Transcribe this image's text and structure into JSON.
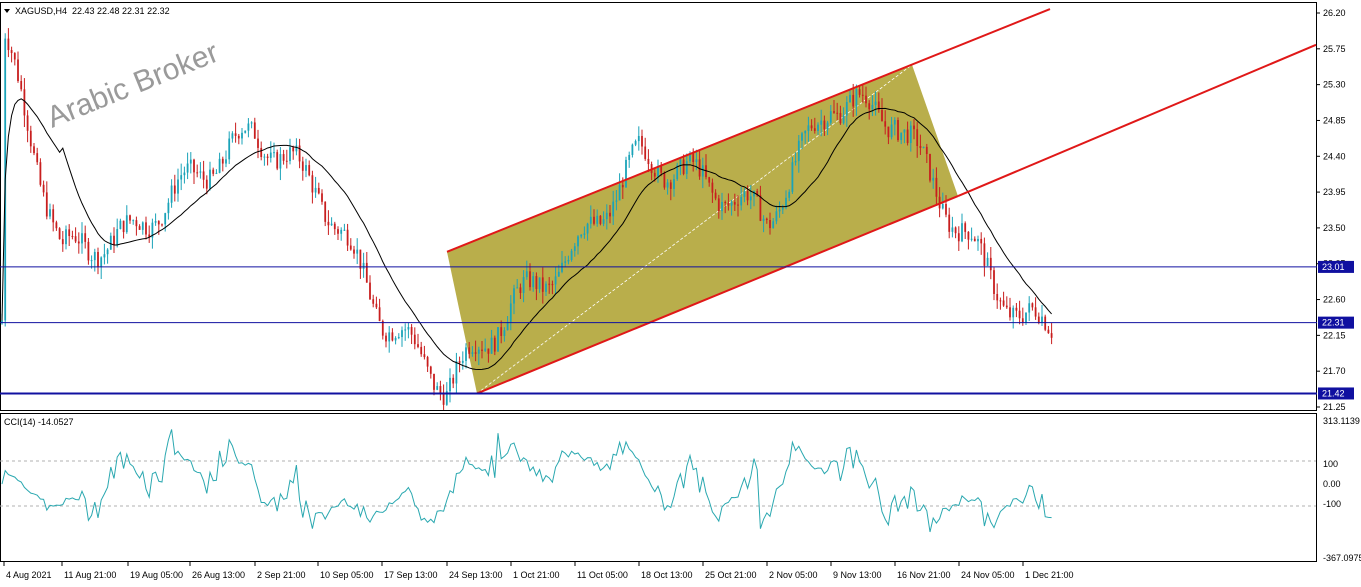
{
  "header": {
    "symbol": "XAGUSD,H4",
    "ohlc": "22.43 22.48 22.31 22.32"
  },
  "watermark": "Arabic Broker",
  "colors": {
    "bull": "#1aa3b8",
    "bear": "#c81e1e",
    "ma": "#000000",
    "channel_line": "#e01818",
    "channel_fill": "#a89a1e",
    "hline": "#1010a0",
    "hline_tag": "#1010a0",
    "cci": "#2aa8b0"
  },
  "price_axis": {
    "ticks": [
      "26.20",
      "25.75",
      "25.30",
      "24.85",
      "24.40",
      "23.95",
      "23.50",
      "23.05",
      "22.60",
      "22.15",
      "21.70",
      "21.25"
    ]
  },
  "hlines": [
    {
      "label": "23.01",
      "price": 23.01
    },
    {
      "label": "22.31",
      "price": 22.31
    },
    {
      "label": "21.42",
      "price": 21.42
    }
  ],
  "indicator": {
    "label": "CCI(14) -14.0527",
    "ticks": [
      "313.1139",
      "100",
      "0.00",
      "-100",
      "-367.0975"
    ]
  },
  "time_axis": {
    "labels": [
      "4 Aug 2021",
      "11 Aug 21:00",
      "19 Aug 05:00",
      "26 Aug 13:00",
      "2 Sep 21:00",
      "10 Sep 05:00",
      "17 Sep 13:00",
      "24 Sep 13:00",
      "1 Oct 21:00",
      "11 Oct 05:00",
      "18 Oct 13:00",
      "25 Oct 21:00",
      "2 Nov 05:00",
      "9 Nov 13:00",
      "16 Nov 21:00",
      "24 Nov 05:00",
      "1 Dec 21:00"
    ]
  },
  "chart_data": {
    "type": "candlestick",
    "symbol": "XAGUSD",
    "timeframe": "H4",
    "y_range": [
      21.15,
      26.3
    ],
    "price_path": [
      {
        "t": "4 Aug 2021",
        "price": 25.9
      },
      {
        "t": "11 Aug 21:00",
        "price": 23.2
      },
      {
        "t": "19 Aug 05:00",
        "price": 23.4
      },
      {
        "t": "26 Aug 13:00",
        "price": 24.1
      },
      {
        "t": "2 Sep 21:00",
        "price": 24.7
      },
      {
        "t": "10 Sep 05:00",
        "price": 24.0
      },
      {
        "t": "17 Sep 13:00",
        "price": 22.4
      },
      {
        "t": "24 Sep 13:00",
        "price": 21.5
      },
      {
        "t": "1 Oct 21:00",
        "price": 22.5
      },
      {
        "t": "11 Oct 05:00",
        "price": 23.2
      },
      {
        "t": "18 Oct 13:00",
        "price": 24.4
      },
      {
        "t": "25 Oct 21:00",
        "price": 24.1
      },
      {
        "t": "2 Nov 05:00",
        "price": 23.6
      },
      {
        "t": "9 Nov 13:00",
        "price": 25.1
      },
      {
        "t": "16 Nov 21:00",
        "price": 24.9
      },
      {
        "t": "24 Nov 05:00",
        "price": 23.5
      },
      {
        "t": "1 Dec 21:00",
        "price": 22.3
      }
    ],
    "horizontal_levels": [
      23.01,
      22.31,
      21.42
    ],
    "indicator": {
      "name": "CCI",
      "period": 14,
      "last": -14.0527,
      "levels": [
        100,
        0,
        -100
      ],
      "range": [
        -367.0975,
        313.1139
      ]
    }
  }
}
